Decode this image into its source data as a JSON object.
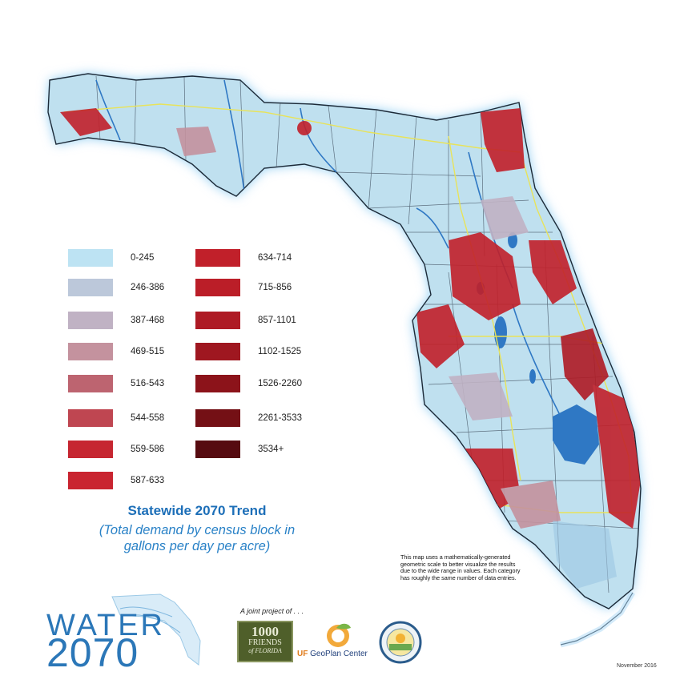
{
  "map": {
    "title": "Statewide 2070 Trend",
    "subtitle_line1": "(Total demand by census block in",
    "subtitle_line2": "gallons per day per acre)",
    "note_lines": [
      "This map uses a mathematically-generated",
      "geometric scale to better visualize the results",
      "due to the wide range in values.  Each category",
      "has roughly the same number of data entries."
    ],
    "date": "November 2016",
    "colors": {
      "land": "#bfe0ef",
      "water": "#2f78c4",
      "glow": "#a9d7f5",
      "road": "#e8e35a",
      "boundary": "#3c4a5a"
    }
  },
  "legend": {
    "left": [
      {
        "label": "0-245",
        "color": "#bde3f3"
      },
      {
        "label": "246-386",
        "color": "#bcc8da"
      },
      {
        "label": "387-468",
        "color": "#c0b2c4"
      },
      {
        "label": "469-515",
        "color": "#c4929e"
      },
      {
        "label": "516-543",
        "color": "#bd6470"
      },
      {
        "label": "544-558",
        "color": "#bf4651"
      },
      {
        "label": "559-586",
        "color": "#c62631"
      },
      {
        "label": "587-633",
        "color": "#c92430"
      }
    ],
    "right": [
      {
        "label": "634-714",
        "color": "#c1202a"
      },
      {
        "label": "715-856",
        "color": "#bb1e28"
      },
      {
        "label": "857-1101",
        "color": "#ae1a24"
      },
      {
        "label": "1102-1525",
        "color": "#9f1720"
      },
      {
        "label": "1526-2260",
        "color": "#8c131a"
      },
      {
        "label": "2261-3533",
        "color": "#741015"
      },
      {
        "label": "3534+",
        "color": "#560b10"
      }
    ]
  },
  "logos": {
    "water_word": "WATER",
    "water_year": "2070",
    "joint_text": "A joint project of . . .",
    "kfof_line1": "1000",
    "kfof_line2": "FRIENDS",
    "kfof_line3": "of FLORIDA",
    "uf_prefix": "UF",
    "uf_text": "GeoPlan Center"
  }
}
